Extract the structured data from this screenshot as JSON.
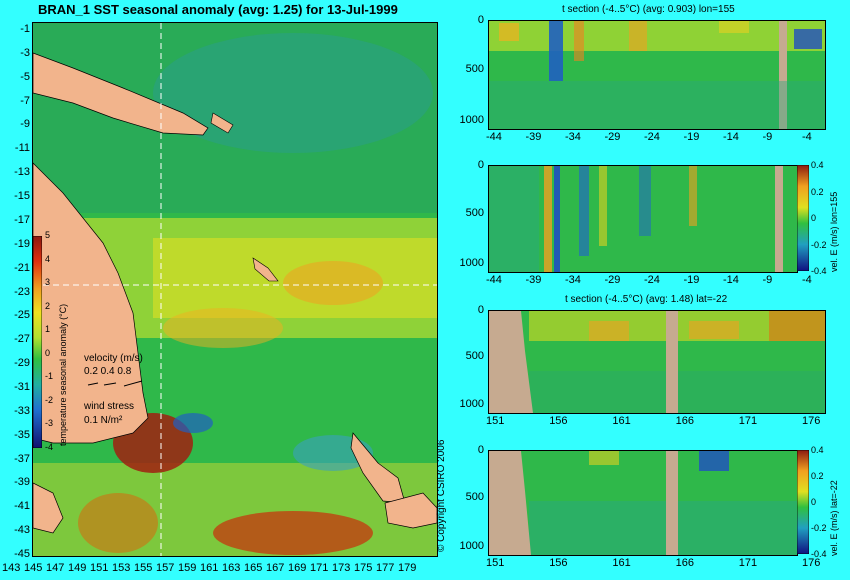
{
  "chart_data": [
    {
      "type": "heatmap",
      "title": "BRAN_1 SST seasonal anomaly (avg: 1.25) for 13-Jul-1999",
      "y_ticks": [
        "-1",
        "-3",
        "-5",
        "-7",
        "-9",
        "-11",
        "-13",
        "-15",
        "-17",
        "-19",
        "-21",
        "-23",
        "-25",
        "-27",
        "-29",
        "-31",
        "-33",
        "-35",
        "-37",
        "-39",
        "-41",
        "-43",
        "-45"
      ],
      "x_ticks": [
        "143",
        "145",
        "147",
        "149",
        "151",
        "153",
        "155",
        "157",
        "159",
        "161",
        "163",
        "165",
        "167",
        "169",
        "171",
        "173",
        "175",
        "177",
        "179"
      ],
      "ylim": [
        -45,
        0
      ],
      "xlim": [
        143,
        181
      ],
      "colorbar": {
        "label": "temperature seasonal anomaly (°C)",
        "ticks": [
          "5",
          "4",
          "3",
          "2",
          "1",
          "0",
          "-1",
          "-2",
          "-3",
          "-4"
        ],
        "range": [
          -4,
          5
        ]
      },
      "legend": {
        "velocity_label": "velocity (m/s)",
        "velocity_values": "0.2 0.4 0.8",
        "wind_label": "wind stress",
        "wind_value": "0.1 N/m²"
      },
      "crosshair": {
        "lon": 155,
        "lat": -22
      }
    },
    {
      "type": "heatmap",
      "title": "t section (-4..5°C) (avg: 0.903) lon=155",
      "x_ticks": [
        "-44",
        "-39",
        "-34",
        "-29",
        "-24",
        "-19",
        "-14",
        "-9",
        "-4"
      ],
      "y_ticks": [
        "0",
        "500",
        "1000"
      ]
    },
    {
      "type": "heatmap",
      "x_ticks": [
        "-44",
        "-39",
        "-34",
        "-29",
        "-24",
        "-19",
        "-14",
        "-9",
        "-4"
      ],
      "y_ticks": [
        "0",
        "500",
        "1000"
      ],
      "colorbar": {
        "label": "vel. E (m/s) lon=155",
        "ticks": [
          "0.4",
          "0.2",
          "0",
          "-0.2",
          "-0.4"
        ]
      }
    },
    {
      "type": "heatmap",
      "title": "t section (-4..5°C) (avg: 1.48) lat=-22",
      "x_ticks": [
        "151",
        "156",
        "161",
        "166",
        "171",
        "176"
      ],
      "y_ticks": [
        "0",
        "500",
        "1000"
      ]
    },
    {
      "type": "heatmap",
      "x_ticks": [
        "151",
        "156",
        "161",
        "166",
        "171",
        "176"
      ],
      "y_ticks": [
        "0",
        "500",
        "1000"
      ],
      "colorbar": {
        "label": "vel. E (m/s) lat=-22",
        "ticks": [
          "0.4",
          "0.2",
          "0",
          "-0.2",
          "-0.4"
        ]
      }
    }
  ],
  "copyright": "© Copyright CSIRO 2006"
}
